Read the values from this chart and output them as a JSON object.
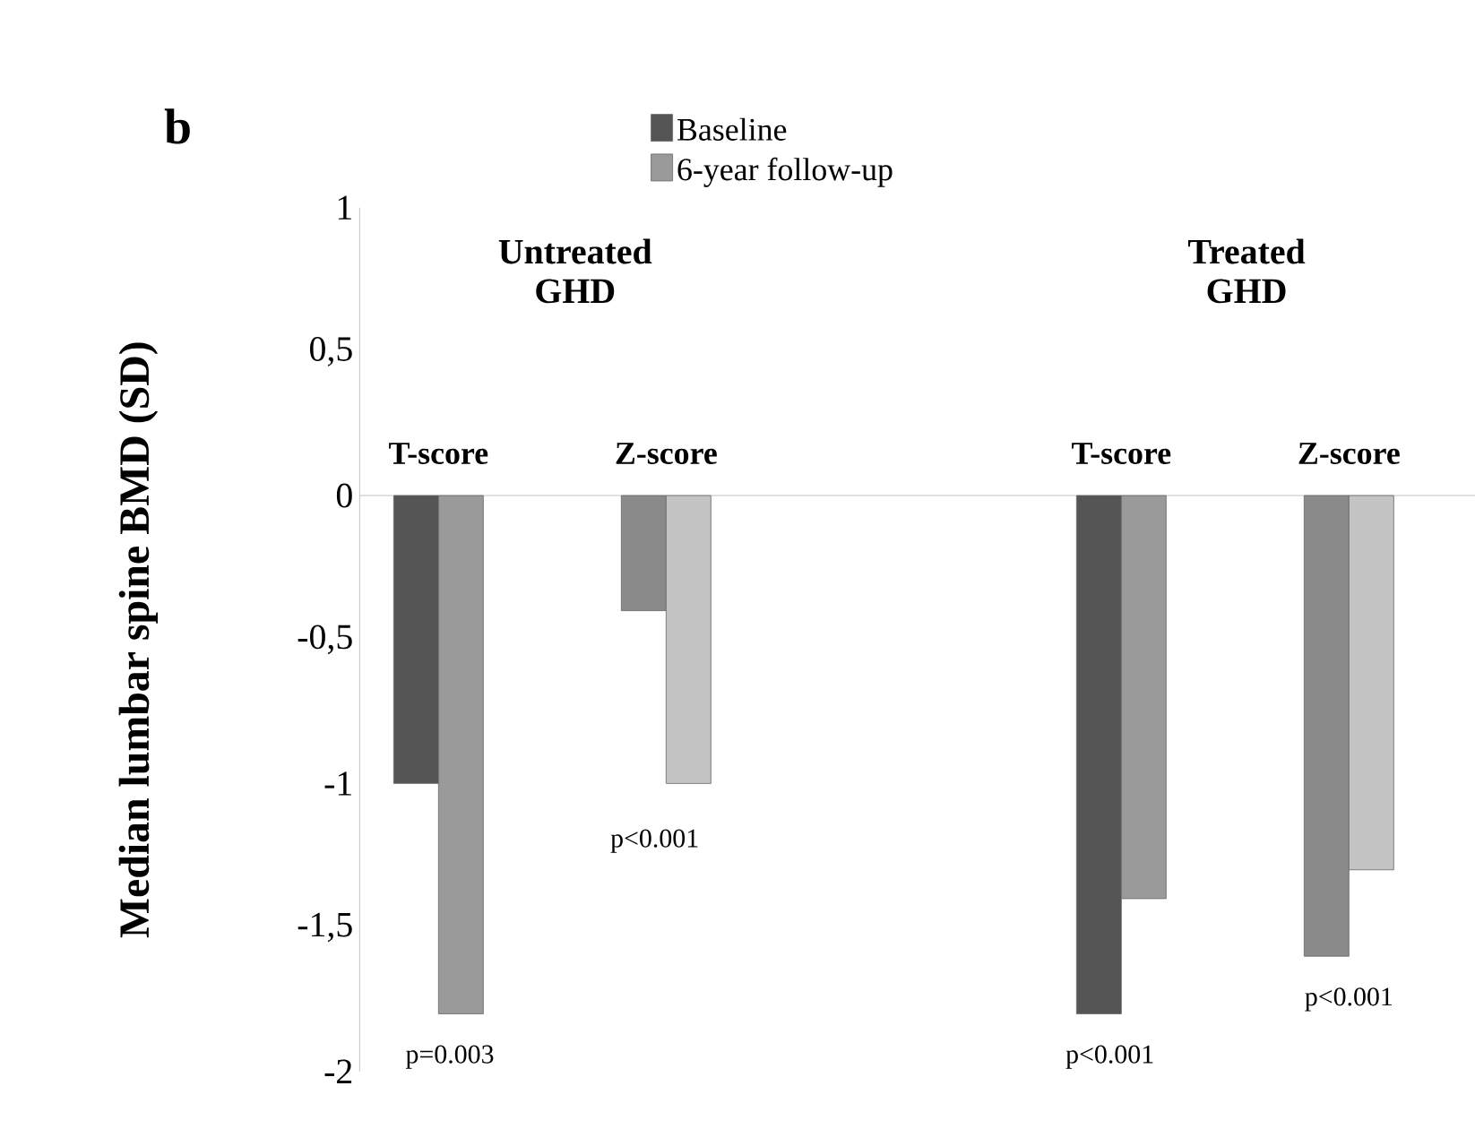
{
  "chart_data": {
    "type": "bar",
    "title": "b",
    "ylabel": "Median lumbar spine BMD (SD)",
    "categories": [
      "T-score",
      "Z-score",
      null,
      "T-score",
      "Z-score"
    ],
    "series": [
      {
        "name": "Baseline",
        "color": "#555555",
        "colors": [
          "#555555",
          "#8a8a8a",
          null,
          "#555555",
          "#8a8a8a"
        ],
        "values": [
          -1.0,
          -0.4,
          null,
          -1.8,
          -1.6
        ]
      },
      {
        "name": "6-year follow-up",
        "color": "#9a9a9a",
        "colors": [
          "#9a9a9a",
          "#c4c4c4",
          null,
          "#9a9a9a",
          "#c4c4c4"
        ],
        "values": [
          -1.8,
          -1.0,
          null,
          -1.4,
          -1.3
        ]
      }
    ],
    "ylim": [
      -2,
      1
    ],
    "yticks": [
      {
        "value": -2,
        "label": "-2"
      },
      {
        "value": -1.5,
        "label": "-1,5"
      },
      {
        "value": -1,
        "label": "-1"
      },
      {
        "value": -0.5,
        "label": "-0,5"
      },
      {
        "value": 0,
        "label": "0"
      },
      {
        "value": 0.5,
        "label": "0,5"
      },
      {
        "value": 1,
        "label": "1"
      }
    ],
    "legend": "top",
    "annotations": [
      "Untreated GHD",
      "Treated GHD",
      "p=0.003",
      "p<0.001",
      "p<0.001",
      "p<0.001"
    ]
  }
}
